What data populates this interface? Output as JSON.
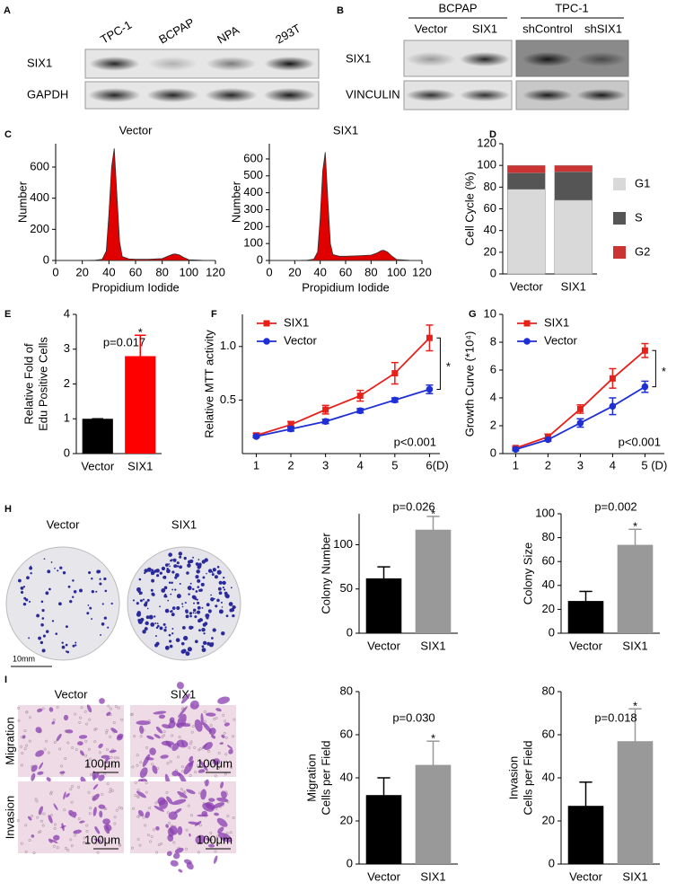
{
  "blots": [
    {
      "panel": "A",
      "lanes": [
        "TPC-1",
        "BCPAP",
        "NPA",
        "293T"
      ],
      "rows": [
        "SIX1",
        "GAPDH"
      ]
    },
    {
      "panel": "B",
      "groups": [
        {
          "name": "BCPAP",
          "lanes": [
            "Vector",
            "SIX1"
          ]
        },
        {
          "name": "TPC-1",
          "lanes": [
            "shControl",
            "shSIX1"
          ]
        }
      ],
      "rows": [
        "SIX1",
        "VINCULIN"
      ]
    }
  ],
  "micrographs": [
    {
      "panel": "H",
      "columns": [
        "Vector",
        "SIX1"
      ],
      "scale_labels": [
        "10mm"
      ]
    },
    {
      "panel": "I",
      "columns": [
        "Vector",
        "SIX1"
      ],
      "rows": [
        "Migration",
        "Invasion"
      ],
      "scale_labels": [
        "100μm",
        "100μm",
        "100μm",
        "100μm"
      ]
    }
  ],
  "chart_data": [
    {
      "type": "area",
      "panel": "C",
      "title": "Vector",
      "xlabel": "Propidium Iodide",
      "ylabel": "Number",
      "x": [
        0,
        10,
        20,
        30,
        35,
        38,
        40,
        42,
        44,
        46,
        48,
        50,
        55,
        60,
        70,
        80,
        85,
        88,
        90,
        93,
        96,
        100,
        110,
        120
      ],
      "values": [
        0,
        0,
        0,
        2,
        8,
        60,
        300,
        600,
        720,
        420,
        120,
        25,
        10,
        8,
        8,
        12,
        30,
        40,
        42,
        35,
        20,
        5,
        1,
        0
      ],
      "color": "#e00000",
      "xlim": [
        0,
        120
      ],
      "ylim": [
        0,
        750
      ],
      "xticks": [
        0,
        20,
        40,
        60,
        80,
        100,
        120
      ],
      "yticks": [
        0,
        200,
        400,
        600
      ]
    },
    {
      "type": "area",
      "title": "SIX1",
      "xlabel": "Propidium Iodide",
      "ylabel": "Number",
      "x": [
        0,
        10,
        20,
        30,
        35,
        38,
        40,
        42,
        44,
        46,
        48,
        50,
        55,
        60,
        70,
        80,
        85,
        88,
        90,
        93,
        96,
        100,
        110,
        120
      ],
      "values": [
        0,
        0,
        0,
        2,
        8,
        50,
        250,
        530,
        640,
        360,
        100,
        35,
        25,
        25,
        28,
        32,
        45,
        58,
        60,
        50,
        28,
        6,
        1,
        0
      ],
      "color": "#e00000",
      "xlim": [
        0,
        120
      ],
      "ylim": [
        0,
        690
      ],
      "xticks": [
        0,
        20,
        40,
        60,
        80,
        100,
        120
      ],
      "yticks": [
        0,
        100,
        200,
        300,
        400,
        500,
        600
      ]
    },
    {
      "type": "stacked",
      "panel": "D",
      "ylabel": "Cell Cycle (%)",
      "categories": [
        "Vector",
        "SIX1"
      ],
      "series": [
        {
          "name": "G1",
          "color": "#d9d9d9",
          "values": [
            78,
            68
          ]
        },
        {
          "name": "S",
          "color": "#555555",
          "values": [
            15,
            26
          ]
        },
        {
          "name": "G2",
          "color": "#cc3333",
          "values": [
            7,
            6
          ]
        }
      ],
      "ylim": [
        0,
        120
      ],
      "yticks": [
        0,
        20,
        40,
        60,
        80,
        100,
        120
      ]
    },
    {
      "type": "bar",
      "panel": "E",
      "ylabel": [
        "Relative Fold of",
        "Edu Positive Cells"
      ],
      "categories": [
        "Vector",
        "SIX1"
      ],
      "values": [
        1,
        2.8
      ],
      "errors": [
        0,
        0.6
      ],
      "colors": [
        "#000000",
        "#ff0000"
      ],
      "ylim": [
        0,
        4
      ],
      "yticks": [
        0,
        1,
        2,
        3,
        4
      ],
      "annotations": [
        "p=0.017",
        "*"
      ]
    },
    {
      "type": "line",
      "panel": "F",
      "ylabel": "Relative MTT activity",
      "x": [
        1,
        2,
        3,
        4,
        5,
        6
      ],
      "series": [
        {
          "name": "SIX1",
          "color": "#e8201a",
          "marker": "square",
          "values": [
            0.17,
            0.27,
            0.41,
            0.54,
            0.75,
            1.08
          ],
          "errors": [
            0.02,
            0.03,
            0.04,
            0.05,
            0.1,
            0.12
          ]
        },
        {
          "name": "Vector",
          "color": "#1f2fd6",
          "marker": "circle",
          "values": [
            0.16,
            0.23,
            0.3,
            0.4,
            0.5,
            0.6
          ],
          "errors": [
            0.01,
            0.02,
            0.02,
            0.02,
            0.02,
            0.04
          ]
        }
      ],
      "xlim": [
        0.6,
        6.3
      ],
      "ylim": [
        0,
        1.3
      ],
      "xticks": [
        1,
        2,
        3,
        4,
        5,
        {
          "value": 6,
          "label": "6(D)"
        }
      ],
      "yticks": [
        0.5,
        {
          "value": 1,
          "label": "1.0"
        }
      ],
      "annotations": [
        "p<0.001",
        "*"
      ]
    },
    {
      "type": "line",
      "panel": "G",
      "ylabel": "Growth Curve (*10⁴)",
      "x": [
        1,
        2,
        3,
        4,
        5
      ],
      "series": [
        {
          "name": "SIX1",
          "color": "#e8201a",
          "marker": "square",
          "values": [
            0.4,
            1.2,
            3.2,
            5.4,
            7.4
          ],
          "errors": [
            0.1,
            0.2,
            0.3,
            0.7,
            0.5
          ]
        },
        {
          "name": "Vector",
          "color": "#1f2fd6",
          "marker": "circle",
          "values": [
            0.3,
            1.0,
            2.2,
            3.4,
            4.8
          ],
          "errors": [
            0.1,
            0.1,
            0.3,
            0.6,
            0.4
          ]
        }
      ],
      "xlim": [
        0.6,
        5.6
      ],
      "ylim": [
        0,
        10
      ],
      "xticks": [
        1,
        2,
        3,
        4,
        {
          "value": 5,
          "label": "5  (D)"
        }
      ],
      "yticks": [
        0,
        2,
        4,
        6,
        8,
        10
      ],
      "annotations": [
        "p<0.001",
        "*"
      ]
    },
    {
      "type": "bar",
      "ylabel": "Colony Number",
      "categories": [
        "Vector",
        "SIX1"
      ],
      "values": [
        62,
        117
      ],
      "errors": [
        13,
        15
      ],
      "colors": [
        "#000000",
        "#999999"
      ],
      "ylim": [
        0,
        135
      ],
      "yticks": [
        0,
        50,
        100
      ],
      "annotations": [
        "p=0.026",
        "*"
      ]
    },
    {
      "type": "bar",
      "ylabel": "Colony Size",
      "categories": [
        "Vector",
        "SIX1"
      ],
      "values": [
        27,
        74
      ],
      "errors": [
        8,
        13
      ],
      "colors": [
        "#000000",
        "#999999"
      ],
      "ylim": [
        0,
        100
      ],
      "yticks": [
        0,
        20,
        40,
        60,
        80,
        100
      ],
      "annotations": [
        "p=0.002",
        "*"
      ]
    },
    {
      "type": "bar",
      "ylabel": [
        "Migration",
        "Cells per Field"
      ],
      "categories": [
        "Vector",
        "SIX1"
      ],
      "values": [
        32,
        46
      ],
      "errors": [
        8,
        11
      ],
      "colors": [
        "#000000",
        "#999999"
      ],
      "ylim": [
        0,
        80
      ],
      "yticks": [
        0,
        20,
        40,
        60,
        80
      ],
      "annotations": [
        "p=0.030",
        "*"
      ]
    },
    {
      "type": "bar",
      "ylabel": [
        "Invasion",
        "Cells per Field"
      ],
      "categories": [
        "Vector",
        "SIX1"
      ],
      "values": [
        27,
        57
      ],
      "errors": [
        11,
        15
      ],
      "colors": [
        "#000000",
        "#999999"
      ],
      "ylim": [
        0,
        80
      ],
      "yticks": [
        0,
        20,
        40,
        60,
        80
      ],
      "annotations": [
        "p=0.018",
        "*"
      ]
    }
  ]
}
